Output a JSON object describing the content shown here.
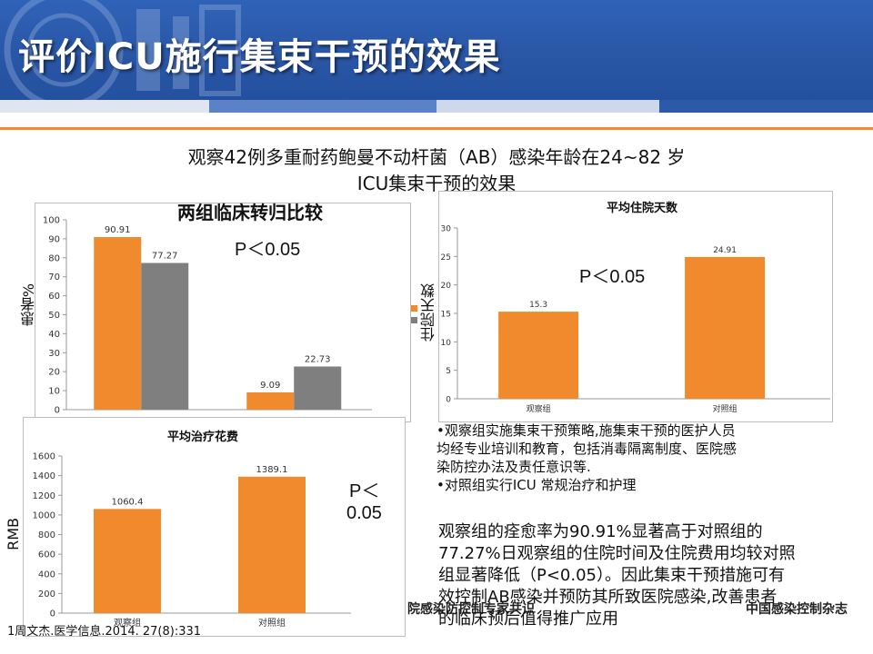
{
  "slide": {
    "title": "评价ICU施行集束干预的效果",
    "subtitle_line1": "观察42例多重耐药鲍曼不动杆菌（AB）感染年龄在24~82 岁",
    "subtitle_line2": "ICU集束干预的效果",
    "colors": {
      "header_blue": "#2a56a6",
      "orange": "#f08a2c",
      "gray": "#7f7f7f"
    }
  },
  "chart_data": [
    {
      "type": "bar",
      "title": "两组临床转归比较",
      "ylabel": "患者%",
      "ylim": [
        0,
        100
      ],
      "yticks": [
        0,
        10,
        20,
        30,
        40,
        50,
        60,
        70,
        80,
        90,
        100
      ],
      "categories": [
        "",
        ""
      ],
      "series": [
        {
          "values": [
            90.91,
            9.09
          ],
          "color": "#f08a2c"
        },
        {
          "values": [
            77.27,
            22.73
          ],
          "color": "#7f7f7f"
        }
      ],
      "data_labels": [
        "90.91",
        "77.27",
        "9.09",
        "22.73"
      ],
      "annotation": "P＜0.05"
    },
    {
      "type": "bar",
      "title": "平均住院天数",
      "ylabel": "住院天数",
      "ylim": [
        0,
        30
      ],
      "yticks": [
        0,
        5,
        10,
        15,
        20,
        25,
        30
      ],
      "categories": [
        "观察组",
        "对照组"
      ],
      "values": [
        15.3,
        24.91
      ],
      "data_labels": [
        "15.3",
        "24.91"
      ],
      "color": "#f08a2c",
      "annotation": "P＜0.05"
    },
    {
      "type": "bar",
      "title": "平均治疗花费",
      "ylabel": "RMB",
      "ylim": [
        0,
        1600
      ],
      "yticks": [
        0,
        200,
        400,
        600,
        800,
        1000,
        1200,
        1400,
        1600
      ],
      "categories": [
        "观察组",
        "对照组"
      ],
      "values": [
        1060.4,
        1389.1
      ],
      "data_labels": [
        "1060.4",
        "1389.1"
      ],
      "color": "#f08a2c",
      "annotation_line1": "P＜",
      "annotation_line2": "0.05"
    }
  ],
  "notes": {
    "bullet1_line1": "•观察组实施集束干预策略,施集束干预的医护人员",
    "bullet1_line2": "均经专业培训和教育，包括消毒隔离制度、医院感",
    "bullet1_line3": "染防控办法及责任意识等.",
    "bullet2": "•对照组实行ICU 常规治疗和护理",
    "conclusion_line1": "观察组的痊愈率为90.91%显著高于对照组的",
    "conclusion_line2": "77.27%日观察组的住院时间及住院费用均较对照",
    "conclusion_line3": "组显著降低（P<0.05）。因此集束干预措施可有",
    "conclusion_line4": "效控制AB感染并预防其所致医院感染,改善患者",
    "conclusion_line5": "的临床预后值得推广应用"
  },
  "footer": {
    "citation": "1周文杰.医学信息.2014. 27(8):331",
    "watermark_left": "院感染防控制专家共识",
    "watermark_right": "中国感染控制杂志"
  }
}
